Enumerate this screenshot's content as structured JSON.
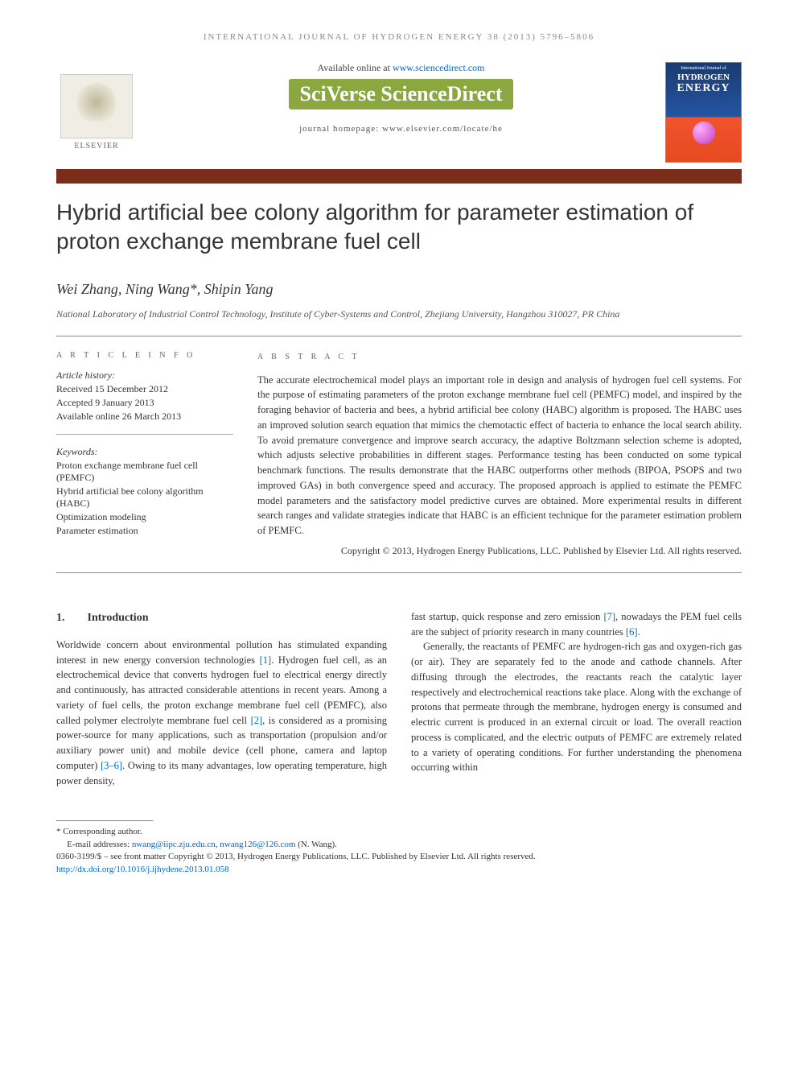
{
  "running_header": "INTERNATIONAL JOURNAL OF HYDROGEN ENERGY 38 (2013) 5796–5806",
  "banner": {
    "available_prefix": "Available online at ",
    "available_url": "www.sciencedirect.com",
    "sciverse": "SciVerse ScienceDirect",
    "homepage_prefix": "journal homepage: ",
    "homepage_url": "www.elsevier.com/locate/he",
    "elsevier": "ELSEVIER",
    "cover_small": "International Journal of",
    "cover_hydrogen": "HYDROGEN",
    "cover_energy": "ENERGY"
  },
  "title": "Hybrid artificial bee colony algorithm for parameter estimation of proton exchange membrane fuel cell",
  "authors": "Wei Zhang, Ning Wang*, Shipin Yang",
  "affiliation": "National Laboratory of Industrial Control Technology, Institute of Cyber-Systems and Control, Zhejiang University, Hangzhou 310027, PR China",
  "info": {
    "heading": "A R T I C L E   I N F O",
    "history_label": "Article history:",
    "received": "Received 15 December 2012",
    "accepted": "Accepted 9 January 2013",
    "online": "Available online 26 March 2013",
    "keywords_label": "Keywords:",
    "kw1": "Proton exchange membrane fuel cell (PEMFC)",
    "kw2": "Hybrid artificial bee colony algorithm (HABC)",
    "kw3": "Optimization modeling",
    "kw4": "Parameter estimation"
  },
  "abstract": {
    "heading": "A B S T R A C T",
    "text": "The accurate electrochemical model plays an important role in design and analysis of hydrogen fuel cell systems. For the purpose of estimating parameters of the proton exchange membrane fuel cell (PEMFC) model, and inspired by the foraging behavior of bacteria and bees, a hybrid artificial bee colony (HABC) algorithm is proposed. The HABC uses an improved solution search equation that mimics the chemotactic effect of bacteria to enhance the local search ability. To avoid premature convergence and improve search accuracy, the adaptive Boltzmann selection scheme is adopted, which adjusts selective probabilities in different stages. Performance testing has been conducted on some typical benchmark functions. The results demonstrate that the HABC outperforms other methods (BIPOA, PSOPS and two improved GAs) in both convergence speed and accuracy. The proposed approach is applied to estimate the PEMFC model parameters and the satisfactory model predictive curves are obtained. More experimental results in different search ranges and validate strategies indicate that HABC is an efficient technique for the parameter estimation problem of PEMFC.",
    "copyright": "Copyright © 2013, Hydrogen Energy Publications, LLC. Published by Elsevier Ltd. All rights reserved."
  },
  "section1": {
    "num": "1.",
    "title": "Introduction"
  },
  "col1": {
    "p1a": "Worldwide concern about environmental pollution has stimulated expanding interest in new energy conversion technologies ",
    "r1": "[1]",
    "p1b": ". Hydrogen fuel cell, as an electrochemical device that converts hydrogen fuel to electrical energy directly and continuously, has attracted considerable attentions in recent years. Among a variety of fuel cells, the proton exchange membrane fuel cell (PEMFC), also called polymer electrolyte membrane fuel cell ",
    "r2": "[2]",
    "p1c": ", is considered as a promising power-source for many applications, such as transportation (propulsion and/or auxiliary power unit) and mobile device (cell phone, camera and laptop computer) ",
    "r3": "[3–6]",
    "p1d": ". Owing to its many advantages, low operating temperature, high power density,"
  },
  "col2": {
    "p1a": "fast startup, quick response and zero emission ",
    "r7": "[7]",
    "p1b": ", nowadays the PEM fuel cells are the subject of priority research in many countries ",
    "r6": "[6]",
    "p1c": ".",
    "p2": "Generally, the reactants of PEMFC are hydrogen-rich gas and oxygen-rich gas (or air). They are separately fed to the anode and cathode channels. After diffusing through the electrodes, the reactants reach the catalytic layer respectively and electrochemical reactions take place. Along with the exchange of protons that permeate through the membrane, hydrogen energy is consumed and electric current is produced in an external circuit or load. The overall reaction process is complicated, and the electric outputs of PEMFC are extremely related to a variety of operating conditions. For further understanding the phenomena occurring within"
  },
  "footnotes": {
    "corresponding": "* Corresponding author.",
    "email_label": "E-mail addresses: ",
    "email1": "nwang@iipc.zju.edu.cn",
    "email_sep": ", ",
    "email2": "nwang126@126.com",
    "email_suffix": " (N. Wang).",
    "issn": "0360-3199/$ – see front matter Copyright © 2013, Hydrogen Energy Publications, LLC. Published by Elsevier Ltd. All rights reserved.",
    "doi": "http://dx.doi.org/10.1016/j.ijhydene.2013.01.058"
  },
  "colors": {
    "brown_bar": "#7a2e1a",
    "sciverse_green": "#8ba840",
    "link": "#0066cc",
    "text": "#333333"
  }
}
